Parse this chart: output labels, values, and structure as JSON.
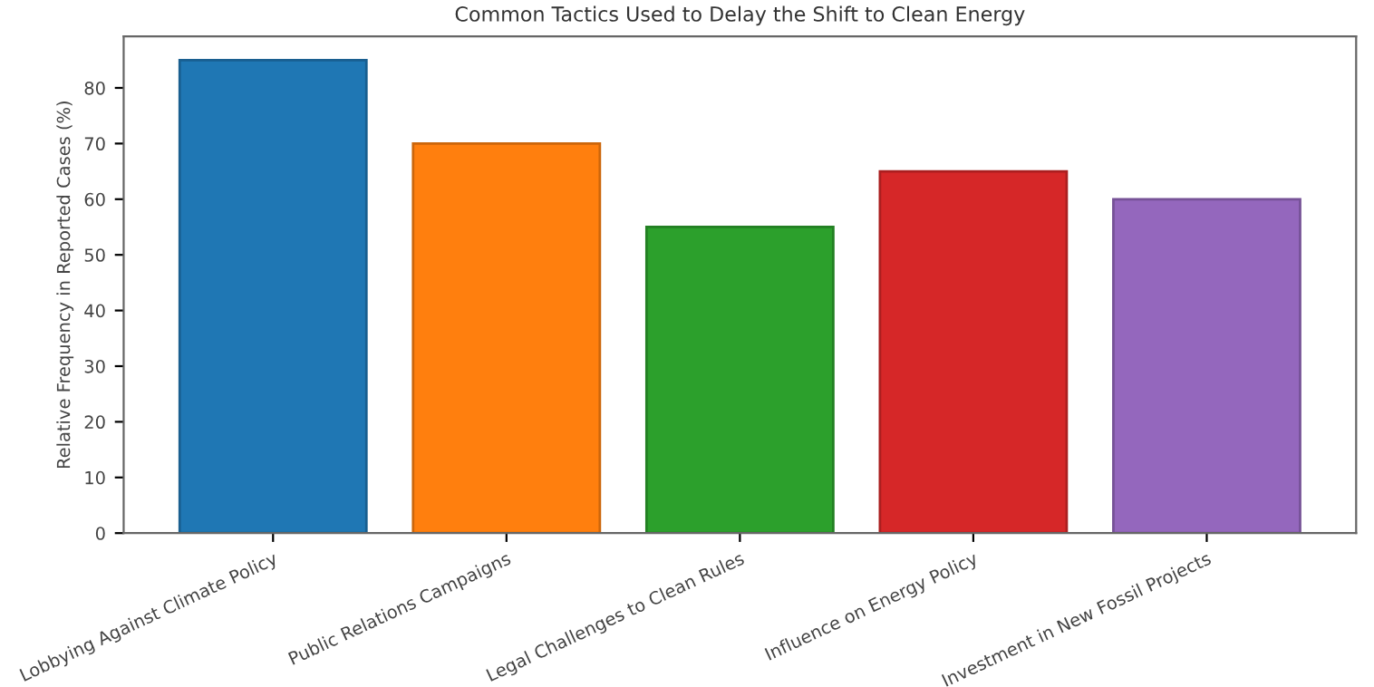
{
  "chart_data": {
    "type": "bar",
    "title": "Common Tactics Used to Delay the Shift to Clean Energy",
    "ylabel": "Relative Frequency in Reported Cases (%)",
    "categories": [
      "Lobbying Against Climate Policy",
      "Public Relations Campaigns",
      "Legal Challenges to Clean Rules",
      "Influence on Energy Policy",
      "Investment in New Fossil Projects"
    ],
    "values": [
      85,
      70,
      55,
      65,
      60
    ],
    "colors": [
      "#1f77b4",
      "#ff7f0e",
      "#2ca02c",
      "#d62728",
      "#9467bd"
    ],
    "ylim": [
      0,
      89.25
    ],
    "yticks": [
      0,
      10,
      20,
      30,
      40,
      50,
      60,
      70,
      80
    ],
    "grid": false,
    "legend": false
  }
}
